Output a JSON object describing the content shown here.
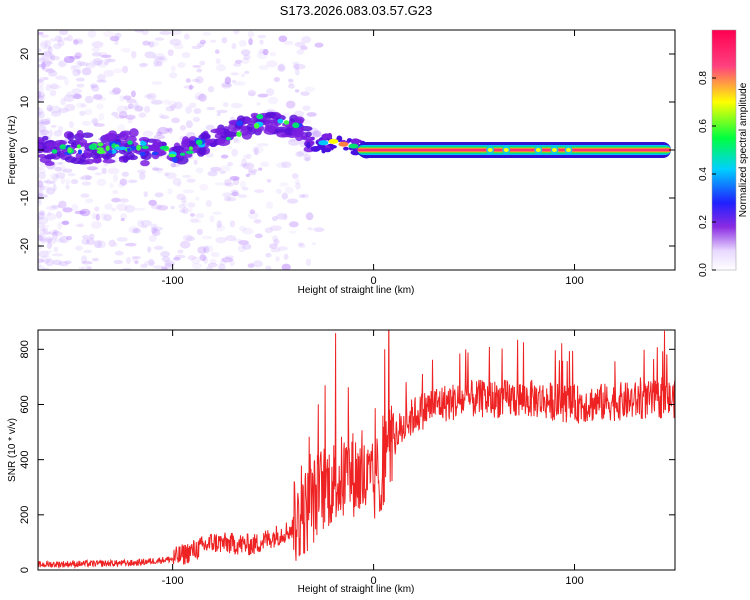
{
  "title": "S173.2026.083.03.57.G23",
  "chart_data": [
    {
      "type": "heatmap",
      "name": "spectrogram",
      "xlabel": "Height of straight line (km)",
      "ylabel": "Frequency (Hz)",
      "xlim": [
        -167,
        150
      ],
      "ylim": [
        -25,
        25
      ],
      "xticks": [
        -100,
        0,
        100
      ],
      "yticks": [
        -20,
        -10,
        0,
        10,
        20
      ],
      "colorbar": {
        "label": "Normalized spectral amplitude",
        "range": [
          0,
          1
        ],
        "ticks": [
          0,
          0.2,
          0.4,
          0.6,
          0.8
        ]
      },
      "ridge": [
        {
          "x": -165,
          "f": 0
        },
        {
          "x": -140,
          "f": 0.5
        },
        {
          "x": -120,
          "f": 0.8
        },
        {
          "x": -100,
          "f": -1
        },
        {
          "x": -80,
          "f": 2
        },
        {
          "x": -70,
          "f": 4
        },
        {
          "x": -55,
          "f": 6
        },
        {
          "x": -45,
          "f": 5
        },
        {
          "x": -35,
          "f": 4.5
        },
        {
          "x": -32,
          "f": 1
        },
        {
          "x": -20,
          "f": 1.5
        },
        {
          "x": -10,
          "f": 0.5
        },
        {
          "x": 0,
          "f": 0
        },
        {
          "x": 50,
          "f": 0
        },
        {
          "x": 100,
          "f": 0.5
        },
        {
          "x": 148,
          "f": 0
        }
      ]
    },
    {
      "type": "line",
      "name": "snr",
      "xlabel": "Height of straight line (km)",
      "ylabel": "SNR (10 * v/v)",
      "xlim": [
        -167,
        150
      ],
      "ylim": [
        0,
        870
      ],
      "xticks": [
        -100,
        0,
        100
      ],
      "yticks": [
        0,
        200,
        400,
        600,
        800
      ],
      "color": "#ee2222",
      "trend": [
        {
          "x": -167,
          "y": 20
        },
        {
          "x": -120,
          "y": 25
        },
        {
          "x": -100,
          "y": 40
        },
        {
          "x": -80,
          "y": 100
        },
        {
          "x": -60,
          "y": 90
        },
        {
          "x": -40,
          "y": 150
        },
        {
          "x": -25,
          "y": 300
        },
        {
          "x": -10,
          "y": 350
        },
        {
          "x": 0,
          "y": 300
        },
        {
          "x": 10,
          "y": 480
        },
        {
          "x": 20,
          "y": 560
        },
        {
          "x": 30,
          "y": 600
        },
        {
          "x": 50,
          "y": 620
        },
        {
          "x": 80,
          "y": 620
        },
        {
          "x": 100,
          "y": 600
        },
        {
          "x": 120,
          "y": 610
        },
        {
          "x": 150,
          "y": 620
        }
      ]
    }
  ]
}
